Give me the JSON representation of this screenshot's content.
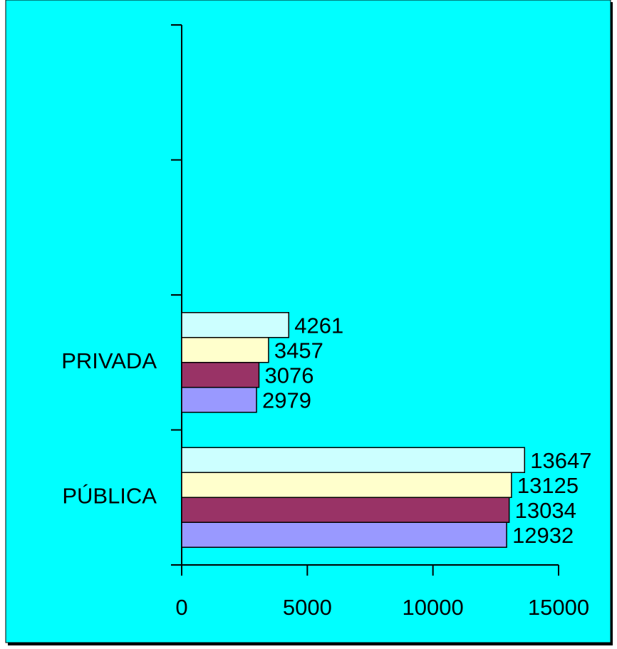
{
  "chart_data": {
    "type": "barh",
    "categories": [
      "PÚBLICA",
      "PRIVADA",
      null,
      null
    ],
    "series": [
      {
        "color": "#9999ff",
        "values": [
          12932,
          2979,
          null,
          null
        ]
      },
      {
        "color": "#993366",
        "values": [
          13034,
          3076,
          null,
          null
        ]
      },
      {
        "color": "#ffffcc",
        "values": [
          13125,
          3457,
          null,
          null
        ]
      },
      {
        "color": "#ccffff",
        "values": [
          13647,
          4261,
          null,
          null
        ]
      }
    ],
    "xlim": [
      0,
      15000
    ],
    "xticks": [
      0,
      5000,
      10000,
      15000
    ],
    "grid": false
  }
}
